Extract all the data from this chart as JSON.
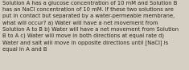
{
  "text": "Solution A has a glucose concentration of 10 mM and Solution B\nhas an NaCl concentration of 10 mM. If these two solutions are\nput in contact but separated by a water-permeable membrane,\nwhat will occur? a) Water will have a net movement from\nSolution A to B b) Water will have a net movement from Solution\nB to A c) Water will move in both directions at equal rate d)\nWater and salt will move in opposite directions until [NaCl] is\nequal in A and B",
  "background_color": "#d6d0c4",
  "text_color": "#2a2218",
  "font_size": 4.85,
  "figsize": [
    2.35,
    0.88
  ],
  "dpi": 100,
  "linespacing": 1.38
}
